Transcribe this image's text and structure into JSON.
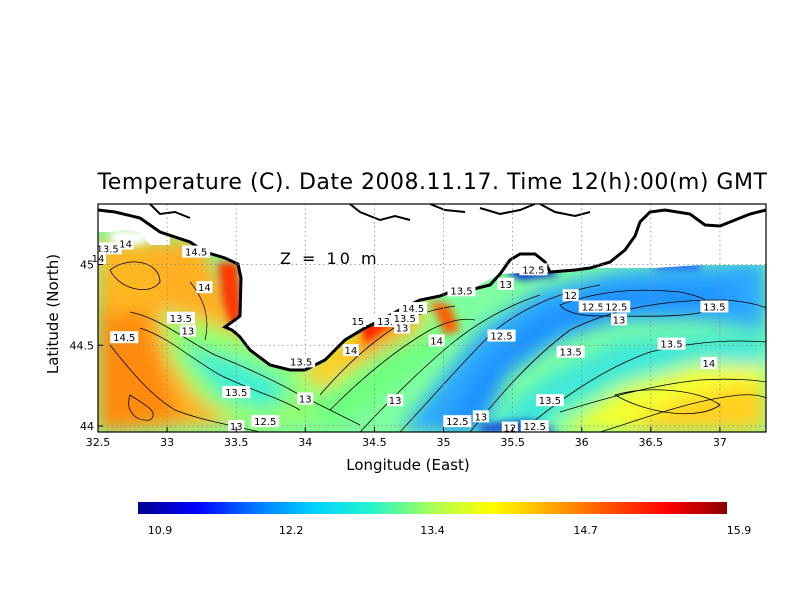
{
  "title": "Temperature (C). Date 2008.11.17. Time 12(h):00(m) GMT",
  "depth_label": "Z = 10 m",
  "xlabel": "Longitude (East)",
  "ylabel": "Latitude (North)",
  "chart_data": {
    "type": "heatmap",
    "title": "Temperature (C). Date 2008.11.17. Time 12(h):00(m) GMT",
    "xlabel": "Longitude (East)",
    "ylabel": "Latitude (North)",
    "xlim": [
      32.5,
      37.3
    ],
    "ylim": [
      44.0,
      45.35
    ],
    "x_ticks": [
      "32.5",
      "33",
      "33.5",
      "34",
      "34.5",
      "35",
      "35.5",
      "36",
      "36.5",
      "37"
    ],
    "x_tick_values": [
      32.5,
      33,
      33.5,
      34,
      34.5,
      35,
      35.5,
      36,
      36.5,
      37
    ],
    "y_ticks": [
      "44",
      "44.5",
      "45"
    ],
    "y_tick_values": [
      44,
      44.5,
      45
    ],
    "colorbar": {
      "min": 10.9,
      "max": 15.9,
      "ticks": [
        "10.9",
        "12.2",
        "13.4",
        "14.7",
        "15.9"
      ],
      "tick_values": [
        10.9,
        12.2,
        13.4,
        14.7,
        15.9
      ],
      "colors": [
        "#00008c",
        "#0000ff",
        "#0078ff",
        "#00d2ff",
        "#28f5c8",
        "#aaff55",
        "#ffff00",
        "#ffaa00",
        "#ff5000",
        "#ff0000",
        "#8c0000"
      ]
    },
    "grid": true,
    "contour_labels": [
      {
        "text": "13.5",
        "lon": 32.57,
        "lat": 45.1
      },
      {
        "text": "14",
        "lon": 32.7,
        "lat": 45.13
      },
      {
        "text": "14",
        "lon": 32.5,
        "lat": 45.04
      },
      {
        "text": "14.5",
        "lon": 33.21,
        "lat": 45.08
      },
      {
        "text": "14",
        "lon": 33.27,
        "lat": 44.86
      },
      {
        "text": "13.5",
        "lon": 33.1,
        "lat": 44.67
      },
      {
        "text": "13",
        "lon": 33.15,
        "lat": 44.59
      },
      {
        "text": "14.5",
        "lon": 32.69,
        "lat": 44.55
      },
      {
        "text": "13.5",
        "lon": 33.97,
        "lat": 44.4
      },
      {
        "text": "13.5",
        "lon": 33.5,
        "lat": 44.21
      },
      {
        "text": "13",
        "lon": 34.0,
        "lat": 44.17
      },
      {
        "text": "12.5",
        "lon": 33.71,
        "lat": 44.03
      },
      {
        "text": "13",
        "lon": 33.5,
        "lat": 44.0
      },
      {
        "text": "15",
        "lon": 34.38,
        "lat": 44.65
      },
      {
        "text": "14",
        "lon": 34.33,
        "lat": 44.47
      },
      {
        "text": "13.5",
        "lon": 34.6,
        "lat": 44.65
      },
      {
        "text": "13",
        "lon": 34.7,
        "lat": 44.61
      },
      {
        "text": "14.5",
        "lon": 34.78,
        "lat": 44.73
      },
      {
        "text": "13.5",
        "lon": 34.72,
        "lat": 44.67
      },
      {
        "text": "14",
        "lon": 34.95,
        "lat": 44.53
      },
      {
        "text": "13",
        "lon": 34.65,
        "lat": 44.16
      },
      {
        "text": "13.5",
        "lon": 35.13,
        "lat": 44.84
      },
      {
        "text": "13",
        "lon": 35.45,
        "lat": 44.88
      },
      {
        "text": "12.5",
        "lon": 35.42,
        "lat": 44.56
      },
      {
        "text": "12.5",
        "lon": 35.65,
        "lat": 44.97
      },
      {
        "text": "12",
        "lon": 35.92,
        "lat": 44.81
      },
      {
        "text": "12.5",
        "lon": 36.08,
        "lat": 44.74
      },
      {
        "text": "12.5",
        "lon": 36.25,
        "lat": 44.74
      },
      {
        "text": "13.5",
        "lon": 36.96,
        "lat": 44.74
      },
      {
        "text": "13",
        "lon": 36.27,
        "lat": 44.66
      },
      {
        "text": "13.5",
        "lon": 35.92,
        "lat": 44.46
      },
      {
        "text": "13.5",
        "lon": 36.65,
        "lat": 44.51
      },
      {
        "text": "14",
        "lon": 36.92,
        "lat": 44.39
      },
      {
        "text": "13.5",
        "lon": 35.77,
        "lat": 44.16
      },
      {
        "text": "12.5",
        "lon": 35.1,
        "lat": 44.03
      },
      {
        "text": "13",
        "lon": 35.27,
        "lat": 44.06
      },
      {
        "text": "12.5",
        "lon": 35.66,
        "lat": 44.0
      },
      {
        "text": "12",
        "lon": 35.48,
        "lat": 43.99
      }
    ]
  }
}
